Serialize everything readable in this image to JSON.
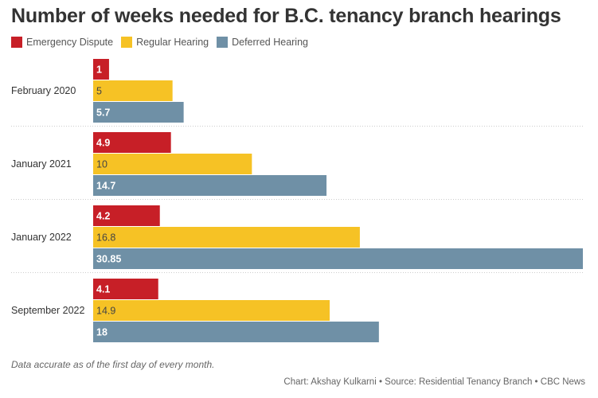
{
  "chart_data": {
    "type": "bar",
    "orientation": "horizontal",
    "title": "Number of weeks needed for B.C. tenancy branch hearings",
    "categories": [
      "February 2020",
      "January 2021",
      "January 2022",
      "September 2022"
    ],
    "series": [
      {
        "name": "Emergency Dispute",
        "color": "#c71f27",
        "values": [
          1,
          4.9,
          4.2,
          4.1
        ],
        "labels": [
          "1",
          "4.9",
          "4.2",
          "4.1"
        ],
        "label_color": "#ffffff"
      },
      {
        "name": "Regular Hearing",
        "color": "#f6c225",
        "values": [
          5,
          10,
          16.8,
          14.9
        ],
        "labels": [
          "5",
          "10",
          "16.8",
          "14.9"
        ],
        "label_color": "#444444"
      },
      {
        "name": "Deferred Hearing",
        "color": "#6f90a6",
        "values": [
          5.7,
          14.7,
          30.85,
          18
        ],
        "labels": [
          "5.7",
          "14.7",
          "30.85",
          "18"
        ],
        "label_color": "#ffffff"
      }
    ],
    "xlim": [
      0,
      30.85
    ],
    "legend": "top-left",
    "grid": false
  },
  "note": "Data accurate as of the first day of every month.",
  "credit": "Chart: Akshay Kulkarni • Source: Residential Tenancy Branch • CBC News"
}
